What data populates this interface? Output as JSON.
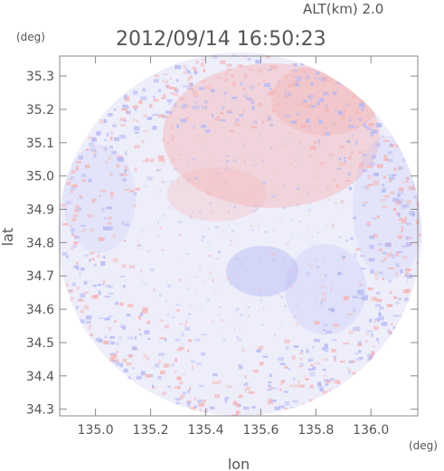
{
  "header": {
    "altitude_label": "ALT(km) 2.0",
    "timestamp": "2012/09/14 16:50:23"
  },
  "axes": {
    "y_unit": "(deg)",
    "x_unit": "(deg)",
    "xlabel": "lon",
    "ylabel": "lat"
  },
  "chart_data": {
    "type": "heatmap",
    "title": "2012/09/14 16:50:23",
    "subtitle": "ALT(km) 2.0",
    "xlabel": "lon",
    "ylabel": "lat",
    "x_unit": "(deg)",
    "y_unit": "(deg)",
    "xlim": [
      134.87,
      136.17
    ],
    "ylim": [
      34.28,
      35.36
    ],
    "x_ticks": [
      "135.0",
      "135.2",
      "135.4",
      "135.6",
      "135.8",
      "136.0"
    ],
    "y_ticks": [
      "34.3",
      "34.4",
      "34.5",
      "34.6",
      "34.7",
      "34.8",
      "34.9",
      "35.0",
      "35.1",
      "35.2",
      "35.3"
    ],
    "grid": false,
    "coverage": "circular radar scan area centered near lon 135.52, lat 34.82",
    "colors": {
      "positive": "#f4b4b4",
      "negative": "#b4b8f4",
      "neutral": "#eeeefb"
    },
    "features": [
      {
        "sign": "positive",
        "lon_range": [
          135.35,
          135.85
        ],
        "lat_range": [
          34.95,
          35.3
        ]
      },
      {
        "sign": "negative",
        "lon_range": [
          135.45,
          135.7
        ],
        "lat_range": [
          34.62,
          34.75
        ]
      }
    ]
  }
}
